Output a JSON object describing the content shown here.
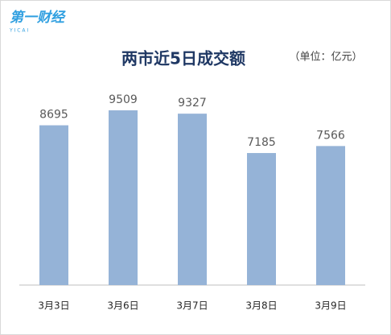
{
  "logo": {
    "text": "第一财经",
    "sub": "Y I C A I"
  },
  "chart_data": {
    "type": "bar",
    "title": "两市近5日成交额",
    "subtitle": "（单位：亿元）",
    "categories": [
      "3月3日",
      "3月6日",
      "3月7日",
      "3月8日",
      "3月9日"
    ],
    "values": [
      8695,
      9509,
      9327,
      7185,
      7566
    ],
    "color": "#95b3d7"
  }
}
